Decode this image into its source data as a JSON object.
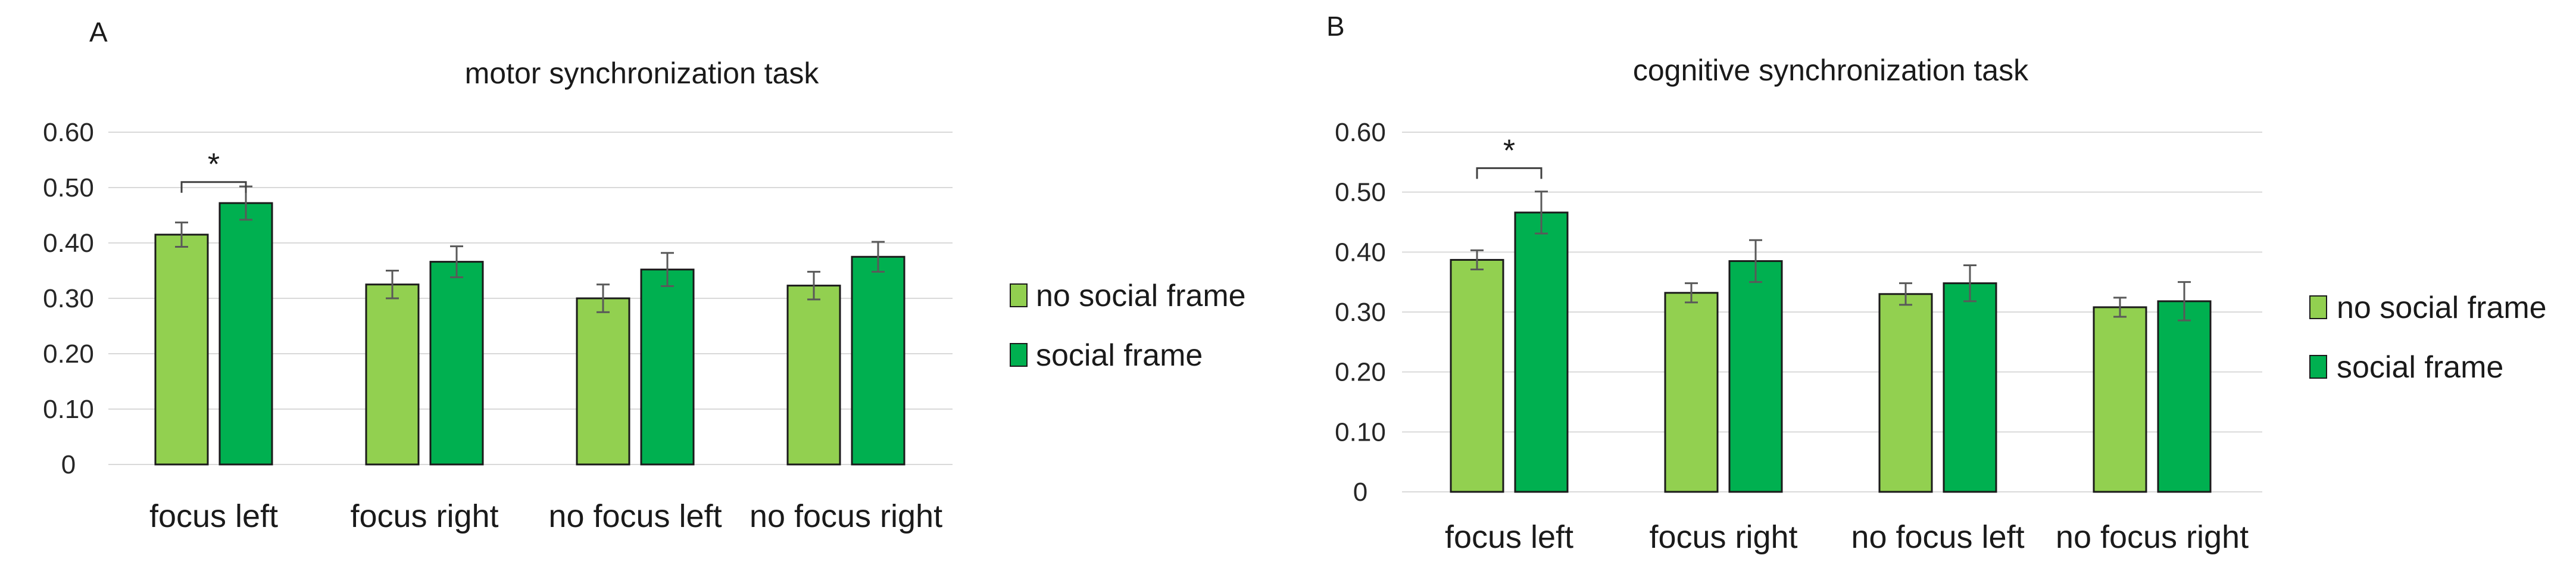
{
  "colors": {
    "no_social_frame": "#92D050",
    "social_frame": "#00B050"
  },
  "panels": [
    {
      "letter": "A"
    },
    {
      "letter": "B"
    }
  ],
  "chart_data": [
    {
      "type": "bar",
      "title": "motor synchronization task",
      "categories": [
        "focus left",
        "focus right",
        "no focus left",
        "no focus right"
      ],
      "series": [
        {
          "name": "no social frame",
          "values": [
            0.415,
            0.325,
            0.3,
            0.323
          ],
          "errors": [
            0.022,
            0.025,
            0.025,
            0.025
          ]
        },
        {
          "name": "social frame",
          "values": [
            0.472,
            0.366,
            0.352,
            0.375
          ],
          "errors": [
            0.03,
            0.028,
            0.03,
            0.027
          ]
        }
      ],
      "ylim": [
        0,
        0.6
      ],
      "yticks": [
        {
          "value": 0,
          "label": "0"
        },
        {
          "value": 0.1,
          "label": "0.10"
        },
        {
          "value": 0.2,
          "label": "0.20"
        },
        {
          "value": 0.3,
          "label": "0.30"
        },
        {
          "value": 0.4,
          "label": "0.40"
        },
        {
          "value": 0.5,
          "label": "0.50"
        },
        {
          "value": 0.6,
          "label": "0.60"
        }
      ],
      "grid": true,
      "legend": "right",
      "annotations": [
        {
          "text": "*",
          "category": "focus left",
          "bracket_value": 0.51
        }
      ]
    },
    {
      "type": "bar",
      "title": "cognitive synchronization task",
      "categories": [
        "focus left",
        "focus right",
        "no focus left",
        "no focus right"
      ],
      "series": [
        {
          "name": "no social frame",
          "values": [
            0.387,
            0.332,
            0.33,
            0.308
          ],
          "errors": [
            0.016,
            0.016,
            0.018,
            0.016
          ]
        },
        {
          "name": "social frame",
          "values": [
            0.466,
            0.385,
            0.348,
            0.318
          ],
          "errors": [
            0.035,
            0.035,
            0.03,
            0.032
          ]
        }
      ],
      "ylim": [
        0,
        0.6
      ],
      "yticks": [
        {
          "value": 0,
          "label": "0"
        },
        {
          "value": 0.1,
          "label": "0.10"
        },
        {
          "value": 0.2,
          "label": "0.20"
        },
        {
          "value": 0.3,
          "label": "0.30"
        },
        {
          "value": 0.4,
          "label": "0.40"
        },
        {
          "value": 0.5,
          "label": "0.50"
        },
        {
          "value": 0.6,
          "label": "0.60"
        }
      ],
      "grid": true,
      "legend": "right",
      "annotations": [
        {
          "text": "*",
          "category": "focus left",
          "bracket_value": 0.54
        }
      ]
    }
  ]
}
